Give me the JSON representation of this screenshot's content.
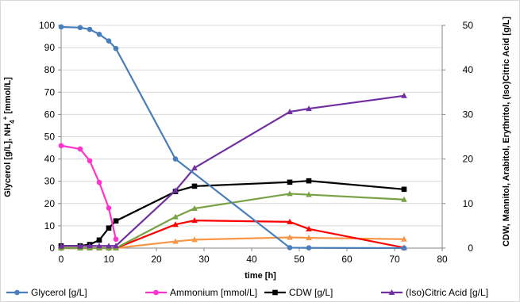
{
  "chart_data": {
    "type": "line",
    "xlabel": "time [h]",
    "ylabel_left": "Glycerol [g/L], NH4+ [mmol/L]",
    "ylabel_right": "CDW, Mannitol, Arabitol, Erythritol, (Iso)Citric Acid  [g/L]",
    "xlim": [
      0,
      80
    ],
    "x_ticks": [
      "0",
      "10",
      "20",
      "30",
      "40",
      "50",
      "60",
      "70",
      "80"
    ],
    "ylim_left": [
      0,
      100
    ],
    "y_ticks_left": [
      "0",
      "10",
      "20",
      "30",
      "40",
      "50",
      "60",
      "70",
      "80",
      "90",
      "100"
    ],
    "ylim_right": [
      0,
      50
    ],
    "y_ticks_right": [
      "0",
      "10",
      "20",
      "30",
      "40",
      "50"
    ],
    "grid": "horizontal",
    "legend_position": "bottom",
    "series": [
      {
        "name": "Glycerol [g/L]",
        "axis": "left",
        "color": "#4a7ebb",
        "marker": "circle",
        "in_legend": true,
        "x": [
          0,
          4,
          6,
          8,
          10,
          11.5,
          24,
          48,
          52,
          72
        ],
        "y": [
          99.3,
          99,
          98.2,
          96,
          93,
          89.6,
          40,
          0.2,
          0.1,
          0
        ]
      },
      {
        "name": "Ammonium [mmol/L]",
        "axis": "left",
        "color": "#ff33cc",
        "marker": "circle",
        "in_legend": true,
        "x": [
          0,
          4,
          6,
          8,
          10,
          11.5
        ],
        "y": [
          46,
          44.5,
          39.2,
          29.5,
          18,
          4
        ]
      },
      {
        "name": "CDW [g/L]",
        "axis": "right",
        "color": "#000000",
        "marker": "square",
        "in_legend": true,
        "x": [
          0,
          4,
          6,
          8,
          10,
          11.5,
          24,
          28,
          48,
          52,
          72
        ],
        "y": [
          0.5,
          0.5,
          0.8,
          1.8,
          4.5,
          6.1,
          12.7,
          13.9,
          14.8,
          15.1,
          13.2
        ]
      },
      {
        "name": "(Iso)Citric Acid [g/L]",
        "axis": "right",
        "color": "#7030a0",
        "marker": "triangle",
        "in_legend": true,
        "x": [
          0,
          4,
          6,
          8,
          10,
          11.5,
          24,
          28,
          48,
          52,
          72
        ],
        "y": [
          0.5,
          0.5,
          0.5,
          0.5,
          0.5,
          0.5,
          12.9,
          18.0,
          30.6,
          31.3,
          34.2
        ]
      },
      {
        "name": "",
        "axis": "right",
        "color": "#77a244",
        "marker": "triangle",
        "in_legend": false,
        "x": [
          0,
          4,
          6,
          8,
          10,
          11.5,
          24,
          28,
          48,
          52,
          72
        ],
        "y": [
          0,
          0,
          0,
          0,
          0,
          0,
          7.0,
          8.9,
          12.2,
          12.0,
          10.9
        ]
      },
      {
        "name": "",
        "axis": "right",
        "color": "#ff0000",
        "marker": "triangle",
        "in_legend": false,
        "x": [
          0,
          4,
          6,
          8,
          10,
          11.5,
          24,
          28,
          48,
          52,
          72
        ],
        "y": [
          0,
          0,
          0,
          0,
          0,
          0,
          5.3,
          6.2,
          5.9,
          4.3,
          0.1
        ]
      },
      {
        "name": "",
        "axis": "right",
        "color": "#f79646",
        "marker": "triangle",
        "in_legend": false,
        "x": [
          0,
          4,
          6,
          8,
          10,
          11.5,
          24,
          28,
          48,
          52,
          72
        ],
        "y": [
          0,
          0,
          0,
          0,
          0,
          0,
          1.5,
          1.9,
          2.4,
          2.3,
          2.0
        ]
      }
    ]
  }
}
